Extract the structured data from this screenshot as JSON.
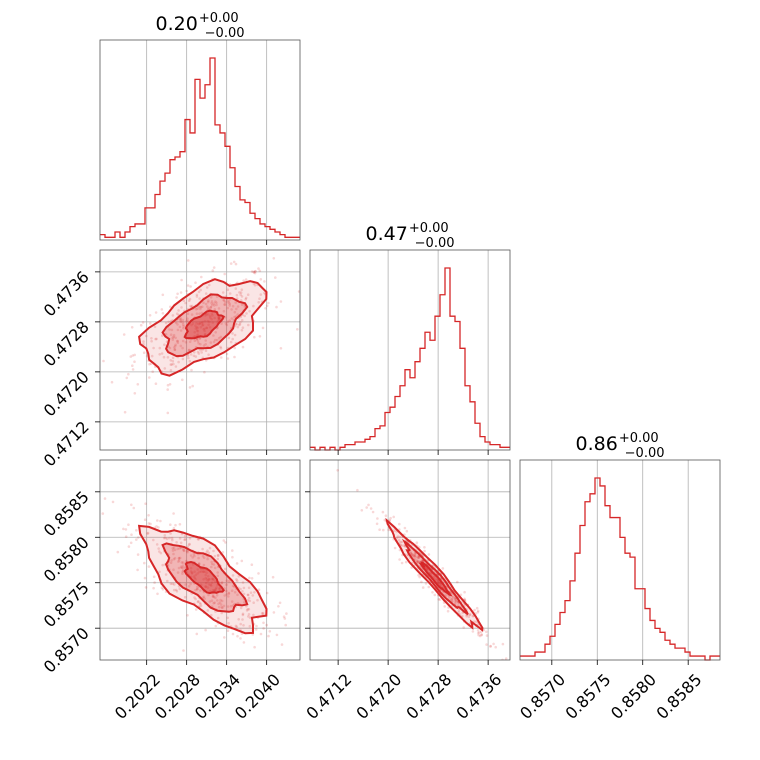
{
  "colors": {
    "series": "#d62728",
    "grid": "#b0b0b0",
    "frame": "#555555"
  },
  "chart_data": {
    "type": "corner",
    "grid": true,
    "parameters": [
      {
        "title_value": "0.20",
        "err_plus": "+0.00",
        "err_minus": "−0.00",
        "range": [
          0.2015,
          0.2045
        ],
        "ticks": [
          0.2022,
          0.2028,
          0.2034,
          0.204
        ],
        "tick_labels": [
          "0.2022",
          "0.2028",
          "0.2034",
          "0.2040"
        ]
      },
      {
        "title_value": "0.47",
        "err_plus": "+0.00",
        "err_minus": "−0.00",
        "range": [
          0.47075,
          0.47395
        ],
        "ticks": [
          0.4712,
          0.472,
          0.4728,
          0.4736
        ],
        "tick_labels": [
          "0.4712",
          "0.4720",
          "0.4728",
          "0.4736"
        ]
      },
      {
        "title_value": "0.86",
        "err_plus": "+0.00",
        "err_minus": "−0.00",
        "range": [
          0.85665,
          0.85885
        ],
        "ticks": [
          0.857,
          0.8575,
          0.858,
          0.8585
        ],
        "tick_labels": [
          "0.8570",
          "0.8575",
          "0.8580",
          "0.8585"
        ]
      }
    ],
    "histograms": [
      {
        "param": 0,
        "bins": 40,
        "counts": [
          2,
          1,
          1,
          3,
          1,
          3,
          5,
          6,
          6,
          12,
          12,
          17,
          22,
          25,
          30,
          31,
          33,
          45,
          40,
          60,
          53,
          58,
          68,
          43,
          40,
          35,
          27,
          20,
          15,
          14,
          10,
          8,
          6,
          5,
          4,
          3,
          2,
          1,
          1,
          1
        ]
      },
      {
        "param": 1,
        "bins": 40,
        "counts": [
          1,
          0,
          1,
          0,
          1,
          0,
          1,
          2,
          2,
          3,
          3,
          4,
          5,
          8,
          9,
          14,
          16,
          20,
          24,
          30,
          27,
          33,
          38,
          44,
          41,
          50,
          58,
          68,
          50,
          48,
          38,
          24,
          18,
          10,
          5,
          3,
          2,
          2,
          1,
          1
        ]
      },
      {
        "param": 2,
        "bins": 40,
        "counts": [
          1,
          1,
          1,
          2,
          2,
          4,
          6,
          9,
          12,
          15,
          20,
          27,
          34,
          40,
          42,
          46,
          44,
          39,
          36,
          36,
          31,
          27,
          26,
          18,
          18,
          13,
          10,
          8,
          7,
          5,
          4,
          3,
          3,
          2,
          1,
          1,
          1,
          0,
          1,
          1
        ]
      }
    ],
    "pairs": [
      {
        "x": 0,
        "y": 1,
        "center": [
          0.20305,
          0.47275
        ],
        "sd": [
          0.00045,
          0.00036
        ],
        "rho": 0.55
      },
      {
        "x": 0,
        "y": 2,
        "center": [
          0.20305,
          0.85755
        ],
        "sd": [
          0.00045,
          0.00028
        ],
        "rho": -0.7
      },
      {
        "x": 1,
        "y": 2,
        "center": [
          0.47275,
          0.85755
        ],
        "sd": [
          0.00036,
          0.00028
        ],
        "rho": -0.97
      }
    ]
  }
}
